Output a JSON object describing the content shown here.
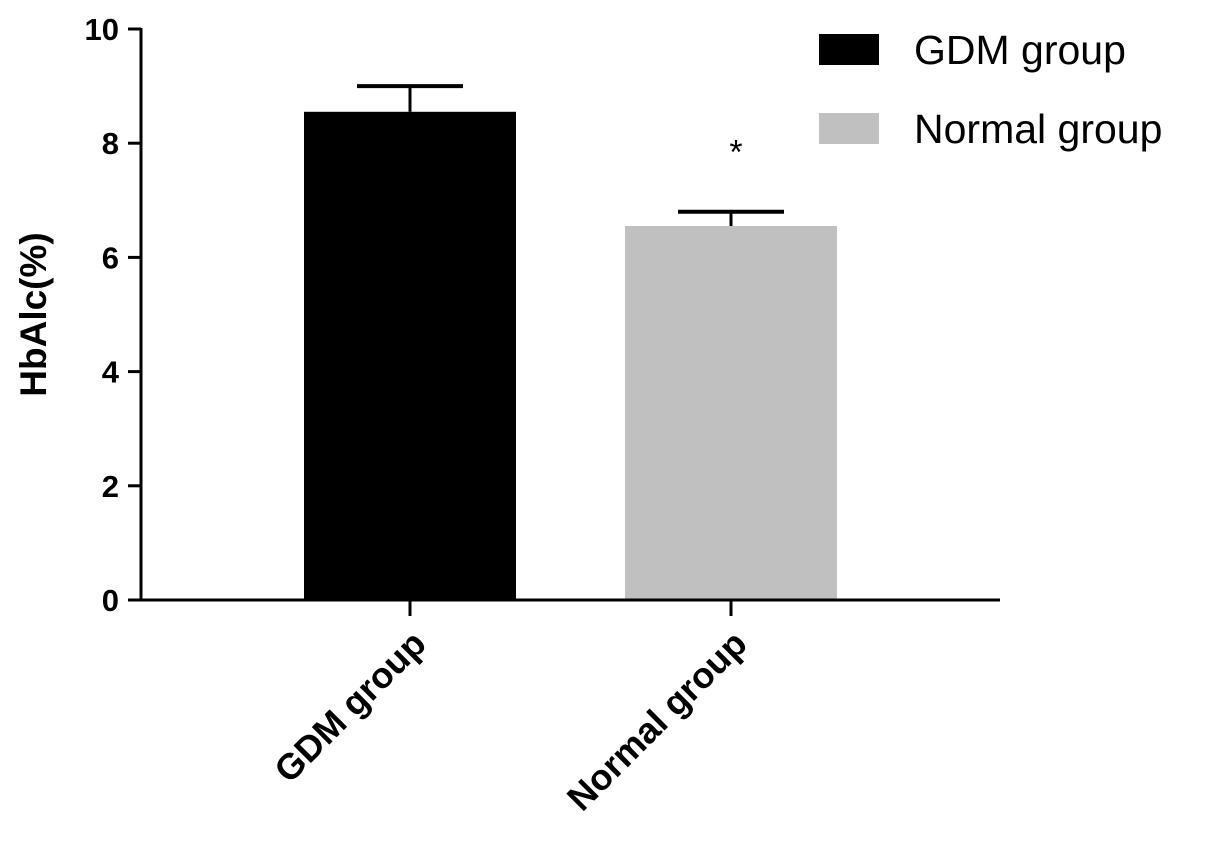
{
  "chart_data": {
    "type": "bar",
    "categories": [
      "GDM group",
      "Normal group"
    ],
    "values": [
      8.55,
      6.55
    ],
    "errors": [
      0.45,
      0.25
    ],
    "colors": [
      "#000000",
      "#c0c0c0"
    ],
    "xlabel": "",
    "ylabel": "HbAlc(%)",
    "ylim": [
      0,
      10
    ],
    "yticks": [
      0,
      2,
      4,
      6,
      8,
      10
    ],
    "grid": false,
    "legend": {
      "position": "top-right",
      "entries": [
        {
          "label": "GDM group",
          "color": "#000000"
        },
        {
          "label": "Normal group",
          "color": "#c0c0c0"
        }
      ]
    },
    "annotations": [
      {
        "category": "Normal group",
        "text": "*"
      }
    ]
  }
}
